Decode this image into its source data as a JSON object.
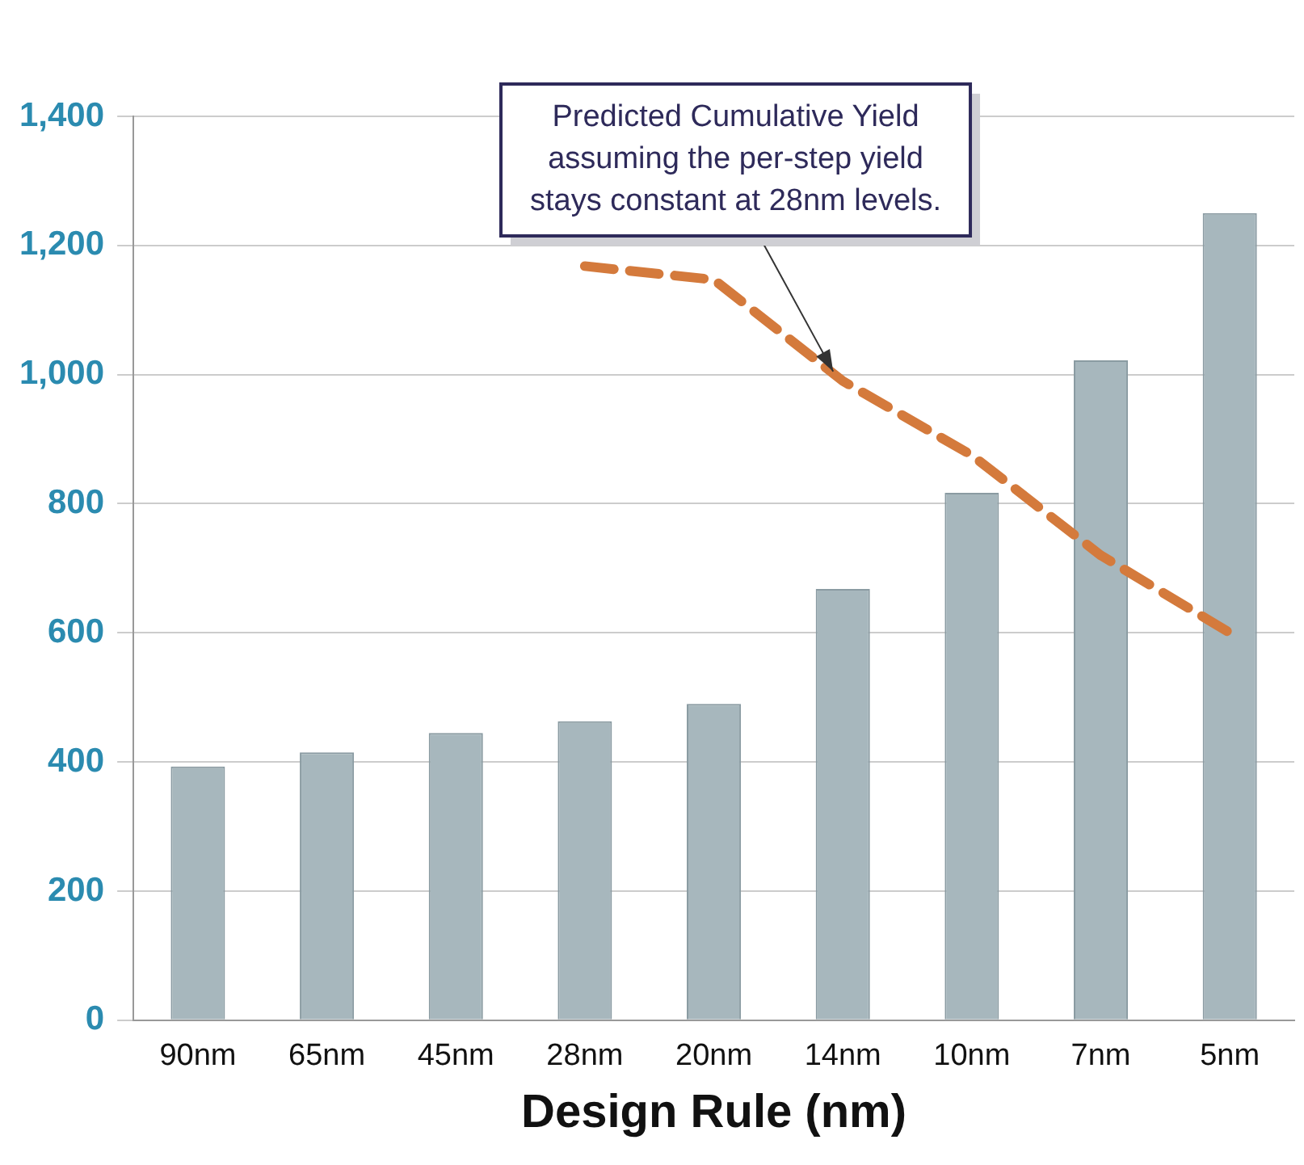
{
  "chart_data": {
    "type": "bar",
    "xlabel": "Design Rule (nm)",
    "categories": [
      "90nm",
      "65nm",
      "45nm",
      "28nm",
      "20nm",
      "14nm",
      "10nm",
      "7nm",
      "5nm"
    ],
    "series": [
      {
        "color": "#a7b7bd",
        "values": [
          393,
          415,
          445,
          463,
          490,
          668,
          817,
          1022,
          1250
        ]
      },
      {
        "type": "line",
        "color": "#d47a3c",
        "line_style": "dashed",
        "marker": "none",
        "values": [
          null,
          null,
          null,
          1168,
          1147,
          990,
          875,
          720,
          600
        ]
      }
    ],
    "ylim": [
      0,
      1400
    ],
    "yticks": [
      0,
      200,
      400,
      600,
      800,
      {
        "value": 1000,
        "label": "1,000"
      },
      {
        "value": 1200,
        "label": "1,200"
      },
      {
        "value": 1400,
        "label": "1,400"
      }
    ],
    "grid": "y",
    "legend": false,
    "annotations": [
      {
        "text": "Predicted Cumulative Yield\nassuming the per-step yield\nstays constant at 28nm levels.",
        "x": "14nm",
        "y": 990
      }
    ]
  }
}
